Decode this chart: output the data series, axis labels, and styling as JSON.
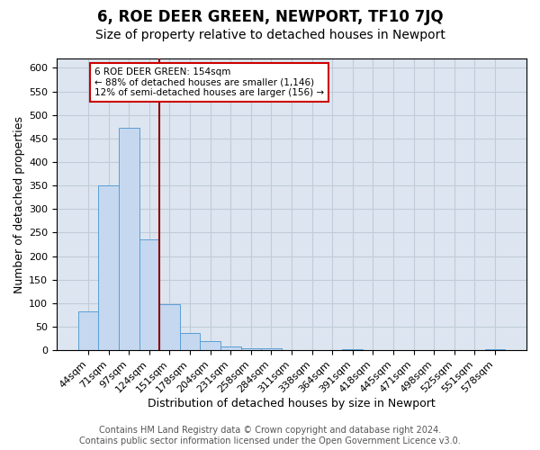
{
  "title": "6, ROE DEER GREEN, NEWPORT, TF10 7JQ",
  "subtitle": "Size of property relative to detached houses in Newport",
  "xlabel": "Distribution of detached houses by size in Newport",
  "ylabel": "Number of detached properties",
  "bin_labels": [
    "44sqm",
    "71sqm",
    "97sqm",
    "124sqm",
    "151sqm",
    "178sqm",
    "204sqm",
    "231sqm",
    "258sqm",
    "284sqm",
    "311sqm",
    "338sqm",
    "364sqm",
    "391sqm",
    "418sqm",
    "445sqm",
    "471sqm",
    "498sqm",
    "525sqm",
    "551sqm",
    "578sqm"
  ],
  "bar_heights": [
    82,
    350,
    473,
    236,
    97,
    37,
    19,
    8,
    5,
    5,
    0,
    0,
    0,
    3,
    0,
    0,
    0,
    0,
    0,
    0,
    3
  ],
  "bar_color": "#c5d8f0",
  "bar_edge_color": "#5a9fd4",
  "vline_x": 3.5,
  "vline_color": "#8b0000",
  "annotation_line1": "6 ROE DEER GREEN: 154sqm",
  "annotation_line2": "← 88% of detached houses are smaller (1,146)",
  "annotation_line3": "12% of semi-detached houses are larger (156) →",
  "annotation_box_color": "#cc0000",
  "ylim": [
    0,
    620
  ],
  "yticks": [
    0,
    50,
    100,
    150,
    200,
    250,
    300,
    350,
    400,
    450,
    500,
    550,
    600
  ],
  "footer_line1": "Contains HM Land Registry data © Crown copyright and database right 2024.",
  "footer_line2": "Contains public sector information licensed under the Open Government Licence v3.0.",
  "fig_bg_color": "#ffffff",
  "plot_bg_color": "#dde6f0",
  "grid_color": "#c0ccd8",
  "title_fontsize": 12,
  "subtitle_fontsize": 10,
  "axis_label_fontsize": 9,
  "tick_fontsize": 8,
  "footer_fontsize": 7
}
